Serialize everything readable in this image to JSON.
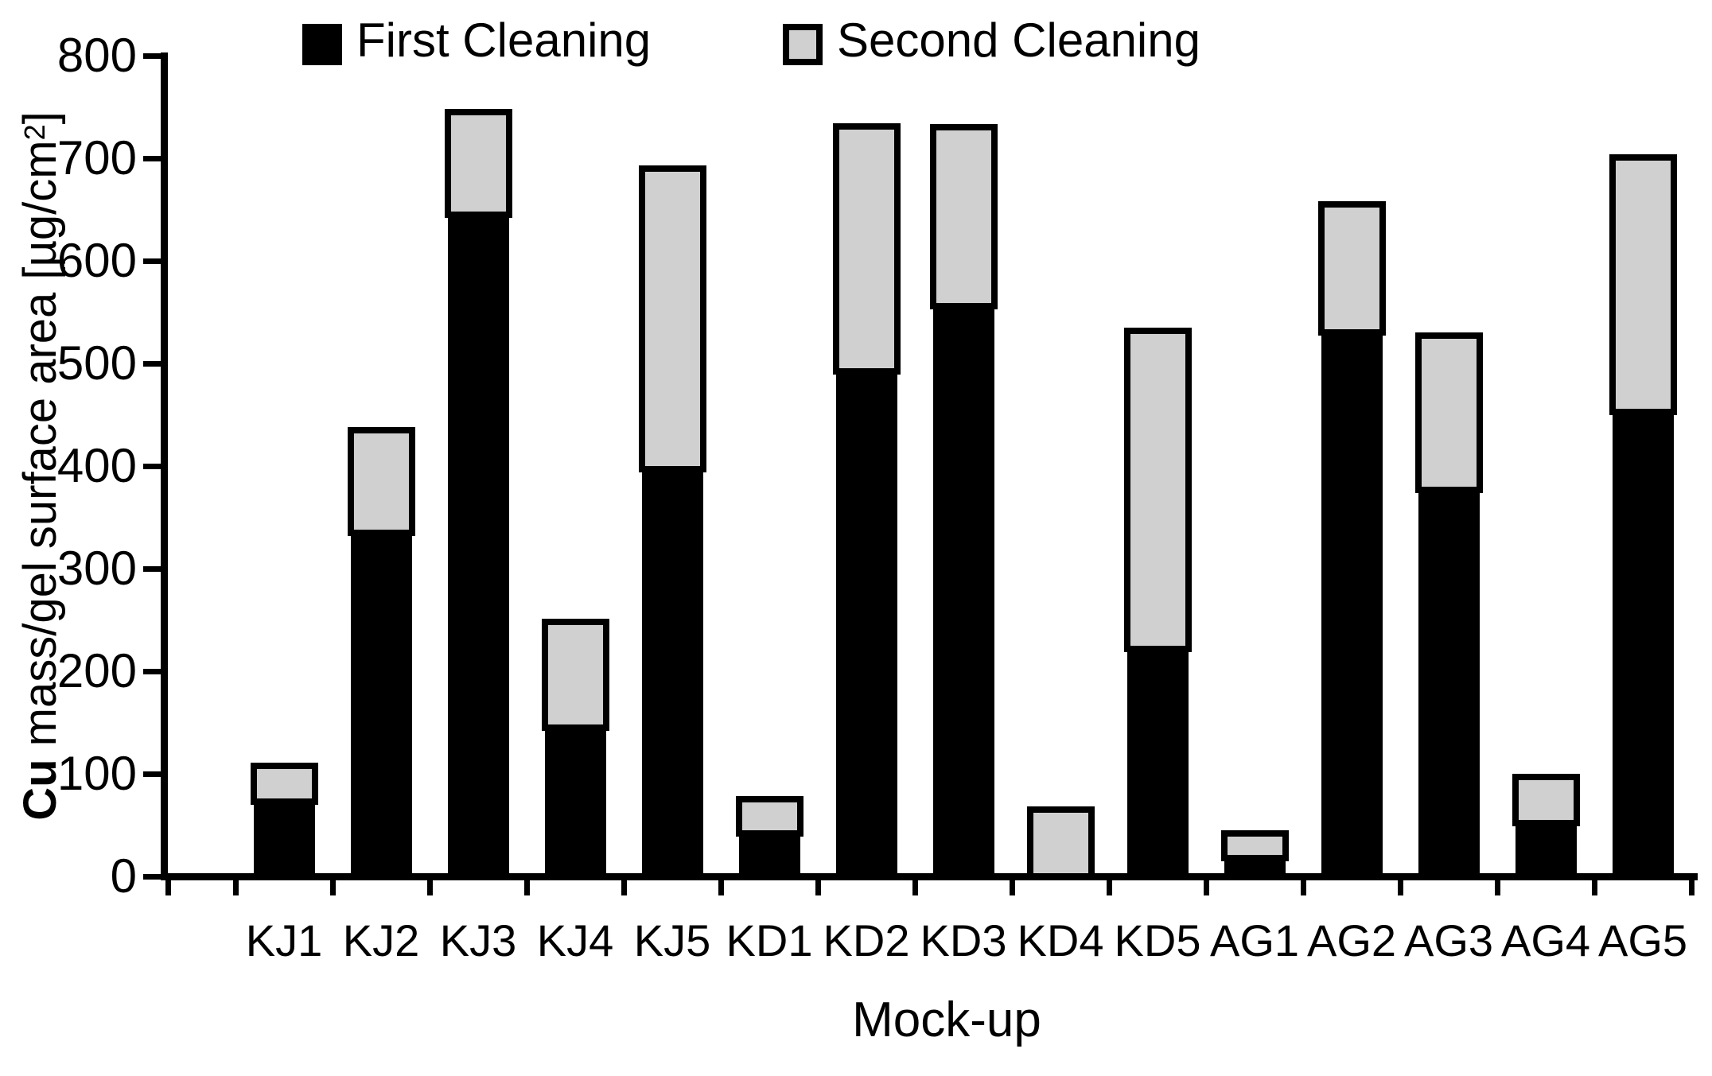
{
  "chart_data": {
    "type": "bar",
    "stacked": true,
    "categories": [
      "KJ1",
      "KJ2",
      "KJ3",
      "KJ4",
      "KJ5",
      "KD1",
      "KD2",
      "KD3",
      "KD4",
      "KD5",
      "AG1",
      "AG2",
      "AG3",
      "AG4",
      "AG5"
    ],
    "series": [
      {
        "name": "First Cleaning",
        "color": "#000000",
        "values": [
          73,
          335,
          645,
          145,
          397,
          42,
          492,
          556,
          0,
          222,
          18,
          530,
          377,
          52,
          453
        ]
      },
      {
        "name": "Second Cleaning",
        "color": "#d0d0d0",
        "values": [
          35,
          100,
          100,
          103,
          293,
          33,
          239,
          174,
          65,
          310,
          24,
          125,
          150,
          45,
          248
        ]
      }
    ],
    "title": "",
    "xlabel": "Mock-up",
    "ylabel": {
      "bold": "Cu",
      "main": " mass/gel surface area [µg/cm",
      "sup": "2",
      "suffix": "]"
    },
    "ylim": [
      0,
      800
    ],
    "ytick_step": 100,
    "yticks": [
      0,
      100,
      200,
      300,
      400,
      500,
      600,
      700,
      800
    ],
    "grid": false,
    "legend_position": "top",
    "axis_color": "#000000",
    "bar_border_color": "#000000"
  }
}
